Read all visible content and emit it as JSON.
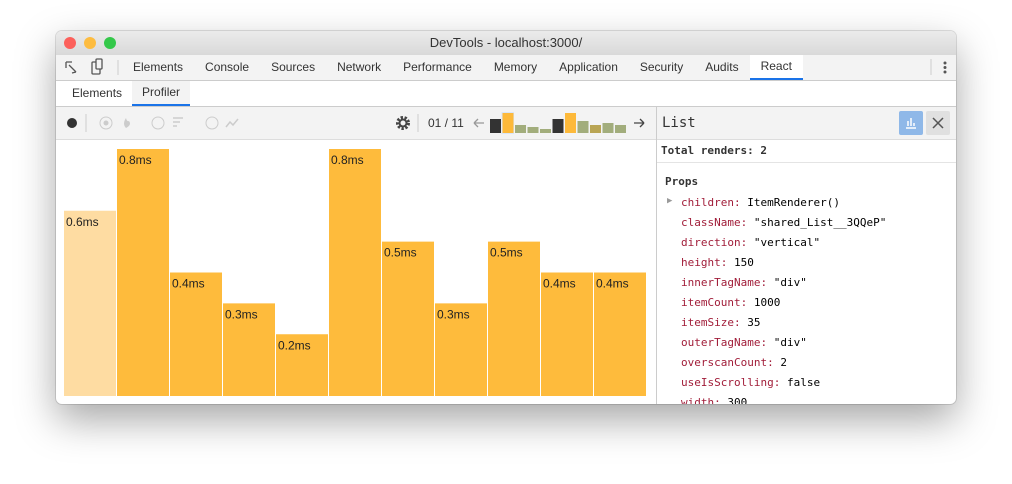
{
  "window": {
    "title": "DevTools - localhost:3000/"
  },
  "tabs": [
    "Elements",
    "Console",
    "Sources",
    "Network",
    "Performance",
    "Memory",
    "Application",
    "Security",
    "Audits",
    "React"
  ],
  "active_tab": 9,
  "subtabs": [
    "Elements",
    "Profiler"
  ],
  "active_subtab": 1,
  "toolbar": {
    "commit_position": "01 / 11",
    "commit_durations": [
      14,
      20,
      8,
      6,
      4,
      14,
      20,
      12,
      8,
      10,
      8
    ],
    "commit_colors": [
      "#333333",
      "#fdb93a",
      "#a2ad7c",
      "#a2ad7c",
      "#a2ad7c",
      "#333333",
      "#fdb93a",
      "#a2ad7c",
      "#b9a554",
      "#a2ad7c",
      "#a2ad7c"
    ],
    "selected_commit": 1
  },
  "chart": {
    "type": "bar",
    "values": [
      0.6,
      0.8,
      0.4,
      0.3,
      0.2,
      0.8,
      0.5,
      0.3,
      0.5,
      0.4,
      0.4
    ],
    "value_labels": [
      "0.6ms",
      "0.8ms",
      "0.4ms",
      "0.3ms",
      "0.2ms",
      "0.8ms",
      "0.5ms",
      "0.3ms",
      "0.5ms",
      "0.4ms",
      "0.4ms"
    ],
    "colors": [
      "#fedca2",
      "#febb3c",
      "#febb3c",
      "#febb3c",
      "#febb3c",
      "#febb3c",
      "#febb3c",
      "#febb3c",
      "#febb3c",
      "#febb3c",
      "#febb3c"
    ]
  },
  "sidebar": {
    "title": "List",
    "total_renders_label": "Total renders:",
    "total_renders": 2,
    "props_title": "Props",
    "props": [
      {
        "name": "children:",
        "value": "ItemRenderer()"
      },
      {
        "name": "className:",
        "value": "\"shared_List__3QQeP\""
      },
      {
        "name": "direction:",
        "value": "\"vertical\""
      },
      {
        "name": "height:",
        "value": "150"
      },
      {
        "name": "innerTagName:",
        "value": "\"div\""
      },
      {
        "name": "itemCount:",
        "value": "1000"
      },
      {
        "name": "itemSize:",
        "value": "35"
      },
      {
        "name": "outerTagName:",
        "value": "\"div\""
      },
      {
        "name": "overscanCount:",
        "value": "2"
      },
      {
        "name": "useIsScrolling:",
        "value": "false"
      },
      {
        "name": "width:",
        "value": "300"
      }
    ]
  }
}
